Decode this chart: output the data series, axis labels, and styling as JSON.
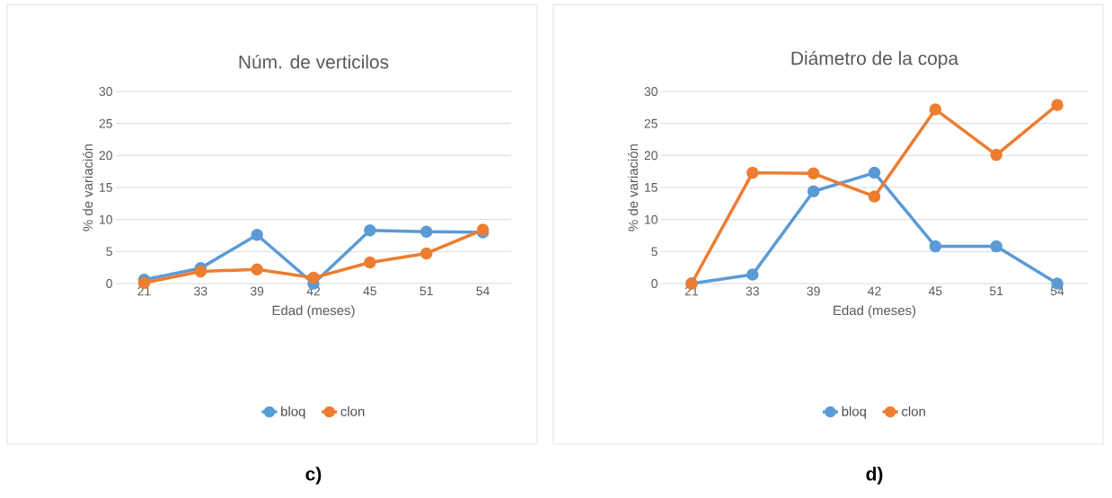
{
  "chart_data": [
    {
      "type": "line",
      "title": "Núm. de verticilos",
      "xlabel": "Edad (meses)",
      "ylabel": "% de variación",
      "categories": [
        "21",
        "33",
        "39",
        "42",
        "45",
        "51",
        "54"
      ],
      "series": [
        {
          "name": "bloq",
          "color": "#5b9bd5",
          "values": [
            0.6,
            2.4,
            7.6,
            0,
            8.3,
            8.1,
            8.0
          ]
        },
        {
          "name": "clon",
          "color": "#ed7d31",
          "values": [
            0.1,
            1.9,
            2.2,
            0.9,
            3.3,
            4.7,
            8.4
          ]
        }
      ],
      "ylim": [
        0,
        30
      ],
      "yticks": [
        0,
        5,
        10,
        15,
        20,
        25,
        30
      ],
      "grid": "y",
      "legend": "bottom",
      "marker": "circle",
      "line_style": "solid",
      "annotations": [
        "c)"
      ]
    },
    {
      "type": "line",
      "title": "Diámetro de la copa",
      "xlabel": "Edad (meses)",
      "ylabel": "% de variación",
      "categories": [
        "21",
        "33",
        "39",
        "42",
        "45",
        "51",
        "54"
      ],
      "series": [
        {
          "name": "bloq",
          "color": "#5b9bd5",
          "values": [
            0,
            1.4,
            14.4,
            17.3,
            5.8,
            5.8,
            0
          ]
        },
        {
          "name": "clon",
          "color": "#ed7d31",
          "values": [
            0,
            17.3,
            17.2,
            13.6,
            27.2,
            20.1,
            27.9
          ]
        }
      ],
      "ylim": [
        0,
        30
      ],
      "yticks": [
        0,
        5,
        10,
        15,
        20,
        25,
        30
      ],
      "grid": "y",
      "legend": "bottom",
      "marker": "circle",
      "line_style": "solid",
      "annotations": [
        "d)"
      ]
    }
  ]
}
